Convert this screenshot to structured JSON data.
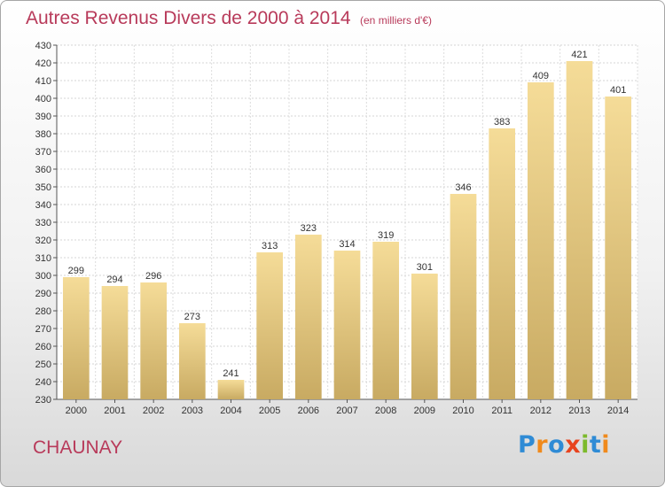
{
  "title": {
    "main": "Autres Revenus Divers de 2000 à 2014",
    "sub": "(en milliers d'€)"
  },
  "place": "CHAUNAY",
  "logo": {
    "letters": [
      "P",
      "r",
      "o",
      "x",
      "i",
      "t",
      "i"
    ]
  },
  "colors": {
    "title": "#b83a5a",
    "bar_top": "#f5dc98",
    "bar_bottom": "#c8aa62"
  },
  "chart_data": {
    "type": "bar",
    "title": "Autres Revenus Divers de 2000 à 2014",
    "xlabel": "",
    "ylabel": "",
    "categories": [
      "2000",
      "2001",
      "2002",
      "2003",
      "2004",
      "2005",
      "2006",
      "2007",
      "2008",
      "2009",
      "2010",
      "2011",
      "2012",
      "2013",
      "2014"
    ],
    "values": [
      299,
      294,
      296,
      273,
      241,
      313,
      323,
      314,
      319,
      301,
      346,
      383,
      409,
      421,
      401
    ],
    "ylim": [
      230,
      430
    ],
    "ytick_step": 10,
    "grid": true,
    "data_labels": true
  }
}
